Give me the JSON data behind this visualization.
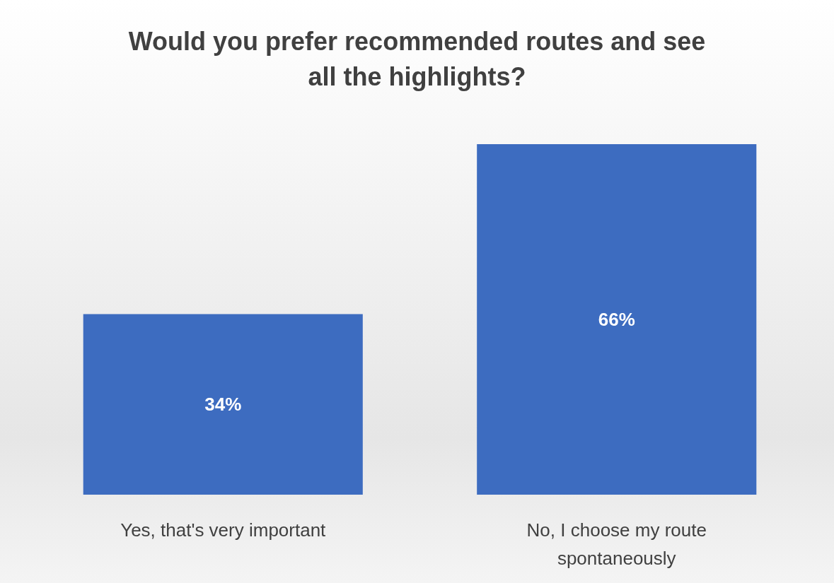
{
  "chart_data": {
    "type": "bar",
    "title": "Would you prefer recommended routes and see\nall the highlights?",
    "categories": [
      "Yes, that's very important",
      "No, I choose my route\nspontaneously"
    ],
    "values": [
      34,
      66
    ],
    "color": "#3d6cc0",
    "value_labels": [
      "34%",
      "66%"
    ]
  }
}
